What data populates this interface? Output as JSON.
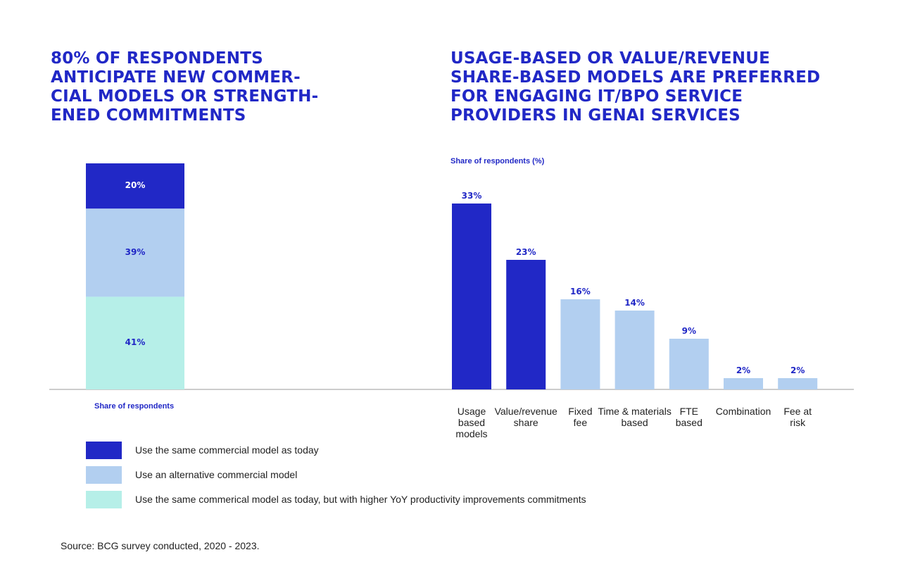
{
  "chart_data": [
    {
      "type": "stacked_bar",
      "title": "80% OF RESPONDENTS\nANTICIPATE NEW COMMER-\nCIAL MODELS OR STRENGTH-\nENED COMMITMENTS",
      "categories": [
        "Share of respondents"
      ],
      "series": [
        {
          "name": "Use the same commercial model as today",
          "color": "#2128c6",
          "values": [
            20
          ],
          "value_labels": [
            "20%"
          ]
        },
        {
          "name": "Use an alternative commercial model",
          "color": "#b2cff0",
          "values": [
            39
          ],
          "value_labels": [
            "39%"
          ]
        },
        {
          "name": "Use the same commerical model as today, but with higher YoY productivity improvements commitments",
          "color": "#b6efe8",
          "values": [
            41
          ],
          "value_labels": [
            "41%"
          ]
        }
      ],
      "ylim": [
        0,
        100
      ]
    },
    {
      "type": "bar",
      "title": "USAGE-BASED OR VALUE/REVENUE\nSHARE-BASED MODELS ARE PREFERRED\nFOR ENGAGING IT/BPO SERVICE\nPROVIDERS IN GENAI SERVICES",
      "y_label": "Share of respondents (%)",
      "categories": [
        "Usage\nbased\nmodels",
        "Value/revenue\nshare",
        "Fixed\nfee",
        "Time & materials\nbased",
        "FTE\nbased",
        "Combination",
        "Fee at\nrisk"
      ],
      "values": [
        33,
        23,
        16,
        14,
        9,
        2,
        2
      ],
      "value_labels": [
        "33%",
        "23%",
        "16%",
        "14%",
        "9%",
        "2%",
        "2%"
      ],
      "colors": [
        "#2128c6",
        "#2128c6",
        "#b2cff0",
        "#b2cff0",
        "#b2cff0",
        "#b2cff0",
        "#b2cff0"
      ],
      "ylim": [
        0,
        40
      ]
    }
  ],
  "source": "Source: BCG survey conducted, 2020 - 2023."
}
